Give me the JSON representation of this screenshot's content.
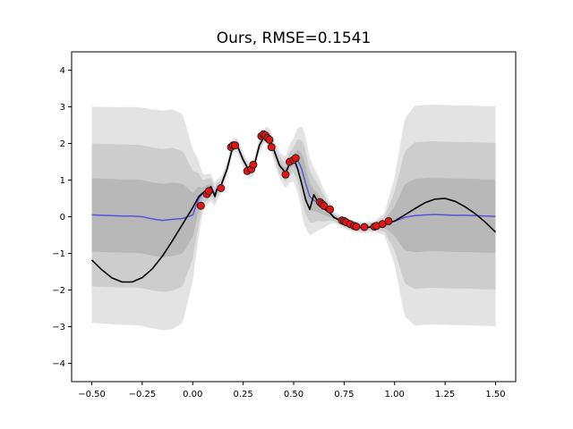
{
  "chart_data": {
    "type": "line",
    "title": "Ours, RMSE=0.1541",
    "xlabel": "",
    "ylabel": "",
    "xlim": [
      -0.6,
      1.6
    ],
    "ylim": [
      -4.5,
      4.5
    ],
    "xticks": [
      -0.5,
      -0.25,
      0.0,
      0.25,
      0.5,
      0.75,
      1.0,
      1.25,
      1.5
    ],
    "xtick_labels": [
      "−0.50",
      "−0.25",
      "0.00",
      "0.25",
      "0.50",
      "0.75",
      "1.00",
      "1.25",
      "1.50"
    ],
    "yticks": [
      -4,
      -3,
      -2,
      -1,
      0,
      1,
      2,
      3,
      4
    ],
    "ytick_labels": [
      "−4",
      "−3",
      "−2",
      "−1",
      "0",
      "1",
      "2",
      "3",
      "4"
    ],
    "grid": false,
    "colors": {
      "true_function": "#000000",
      "prediction_mean": "#5555dd",
      "points_fill": "#ee1111",
      "points_edge": "#222222",
      "band_1sd": "#b8b8b8",
      "band_2sd": "#cdcdcd",
      "band_3sd": "#e3e3e3"
    },
    "series": [
      {
        "role": "true_function",
        "x": [
          -0.5,
          -0.45,
          -0.4,
          -0.35,
          -0.3,
          -0.25,
          -0.2,
          -0.15,
          -0.1,
          -0.05,
          0.0,
          0.03,
          0.06,
          0.09,
          0.11,
          0.12,
          0.14,
          0.17,
          0.2,
          0.22,
          0.25,
          0.28,
          0.3,
          0.33,
          0.36,
          0.38,
          0.4,
          0.43,
          0.46,
          0.48,
          0.5,
          0.52,
          0.54,
          0.56,
          0.58,
          0.6,
          0.62,
          0.65,
          0.68,
          0.7,
          0.73,
          0.76,
          0.8,
          0.85,
          0.9,
          0.95,
          1.0,
          1.05,
          1.1,
          1.15,
          1.2,
          1.25,
          1.3,
          1.35,
          1.4,
          1.45,
          1.5
        ],
        "y": [
          -1.18,
          -1.45,
          -1.67,
          -1.78,
          -1.78,
          -1.66,
          -1.42,
          -1.07,
          -0.65,
          -0.2,
          0.25,
          0.55,
          0.7,
          0.82,
          0.55,
          0.75,
          0.85,
          1.3,
          1.95,
          1.95,
          1.55,
          1.25,
          1.3,
          1.95,
          2.25,
          2.15,
          1.85,
          1.4,
          1.2,
          1.45,
          1.6,
          1.3,
          0.9,
          0.45,
          0.2,
          0.6,
          0.4,
          0.22,
          0.1,
          -0.02,
          -0.1,
          -0.2,
          -0.27,
          -0.3,
          -0.27,
          -0.2,
          -0.12,
          0.05,
          0.22,
          0.38,
          0.48,
          0.5,
          0.42,
          0.27,
          0.08,
          -0.15,
          -0.42
        ]
      },
      {
        "role": "prediction_mean",
        "x": [
          -0.5,
          -0.45,
          -0.4,
          -0.35,
          -0.3,
          -0.25,
          -0.2,
          -0.15,
          -0.1,
          -0.05,
          0.0,
          0.03,
          0.06,
          0.09,
          0.11,
          0.12,
          0.14,
          0.17,
          0.2,
          0.22,
          0.25,
          0.28,
          0.3,
          0.33,
          0.36,
          0.38,
          0.4,
          0.43,
          0.46,
          0.48,
          0.5,
          0.52,
          0.54,
          0.56,
          0.58,
          0.6,
          0.62,
          0.65,
          0.68,
          0.7,
          0.73,
          0.76,
          0.8,
          0.85,
          0.9,
          0.95,
          1.0,
          1.05,
          1.1,
          1.15,
          1.2,
          1.25,
          1.3,
          1.35,
          1.4,
          1.45,
          1.5
        ],
        "y": [
          0.05,
          0.04,
          0.03,
          0.02,
          0.02,
          0.0,
          -0.06,
          -0.1,
          -0.07,
          -0.05,
          0.05,
          0.5,
          0.7,
          0.8,
          0.6,
          0.75,
          0.85,
          1.3,
          1.95,
          1.95,
          1.55,
          1.25,
          1.3,
          1.95,
          2.25,
          2.15,
          1.85,
          1.4,
          1.2,
          1.45,
          1.55,
          1.55,
          1.3,
          0.9,
          0.55,
          0.45,
          0.38,
          0.22,
          0.1,
          -0.02,
          -0.1,
          -0.2,
          -0.27,
          -0.3,
          -0.27,
          -0.2,
          -0.12,
          -0.02,
          0.03,
          0.05,
          0.06,
          0.05,
          0.04,
          0.04,
          0.03,
          0.02,
          0.01
        ]
      },
      {
        "role": "band_halfwidth_1sd",
        "x": [
          -0.5,
          -0.1,
          -0.05,
          0.0,
          0.05,
          0.15,
          0.25,
          0.35,
          0.45,
          0.5,
          0.55,
          0.6,
          0.7,
          0.8,
          0.9,
          0.95,
          1.0,
          1.05,
          1.1,
          1.5
        ],
        "y": [
          1.0,
          1.0,
          0.95,
          0.6,
          0.15,
          0.05,
          0.05,
          0.05,
          0.1,
          0.15,
          0.5,
          0.3,
          0.05,
          0.05,
          0.05,
          0.1,
          0.4,
          0.9,
          1.0,
          1.0
        ]
      },
      {
        "role": "band_halfwidth_2sd",
        "x": [
          -0.5,
          -0.1,
          -0.05,
          0.0,
          0.05,
          0.15,
          0.25,
          0.35,
          0.45,
          0.5,
          0.55,
          0.6,
          0.7,
          0.8,
          0.9,
          0.95,
          1.0,
          1.05,
          1.1,
          1.5
        ],
        "y": [
          1.95,
          1.95,
          1.85,
          1.2,
          0.35,
          0.1,
          0.1,
          0.12,
          0.25,
          0.35,
          0.9,
          0.6,
          0.1,
          0.1,
          0.1,
          0.2,
          0.8,
          1.8,
          2.0,
          2.0
        ]
      },
      {
        "role": "band_halfwidth_3sd",
        "x": [
          -0.5,
          -0.1,
          -0.05,
          0.0,
          0.05,
          0.15,
          0.25,
          0.35,
          0.45,
          0.5,
          0.55,
          0.6,
          0.7,
          0.8,
          0.9,
          0.95,
          1.0,
          1.05,
          1.1,
          1.5
        ],
        "y": [
          2.95,
          3.0,
          2.85,
          1.8,
          0.5,
          0.2,
          0.2,
          0.2,
          0.4,
          0.6,
          1.3,
          0.9,
          0.15,
          0.15,
          0.15,
          0.3,
          1.2,
          2.7,
          3.0,
          3.0
        ]
      },
      {
        "role": "observations",
        "x": [
          0.04,
          0.07,
          0.08,
          0.14,
          0.19,
          0.2,
          0.21,
          0.27,
          0.29,
          0.3,
          0.34,
          0.35,
          0.36,
          0.37,
          0.38,
          0.39,
          0.46,
          0.48,
          0.5,
          0.51,
          0.63,
          0.64,
          0.65,
          0.68,
          0.74,
          0.75,
          0.76,
          0.78,
          0.8,
          0.81,
          0.85,
          0.9,
          0.91,
          0.94,
          0.97
        ],
        "y": [
          0.3,
          0.62,
          0.7,
          0.78,
          1.9,
          1.95,
          1.95,
          1.25,
          1.3,
          1.42,
          2.2,
          2.25,
          2.22,
          2.15,
          2.1,
          1.9,
          1.15,
          1.5,
          1.55,
          1.6,
          0.4,
          0.35,
          0.3,
          0.2,
          -0.1,
          -0.12,
          -0.15,
          -0.2,
          -0.25,
          -0.27,
          -0.28,
          -0.27,
          -0.25,
          -0.2,
          -0.12
        ]
      }
    ]
  }
}
